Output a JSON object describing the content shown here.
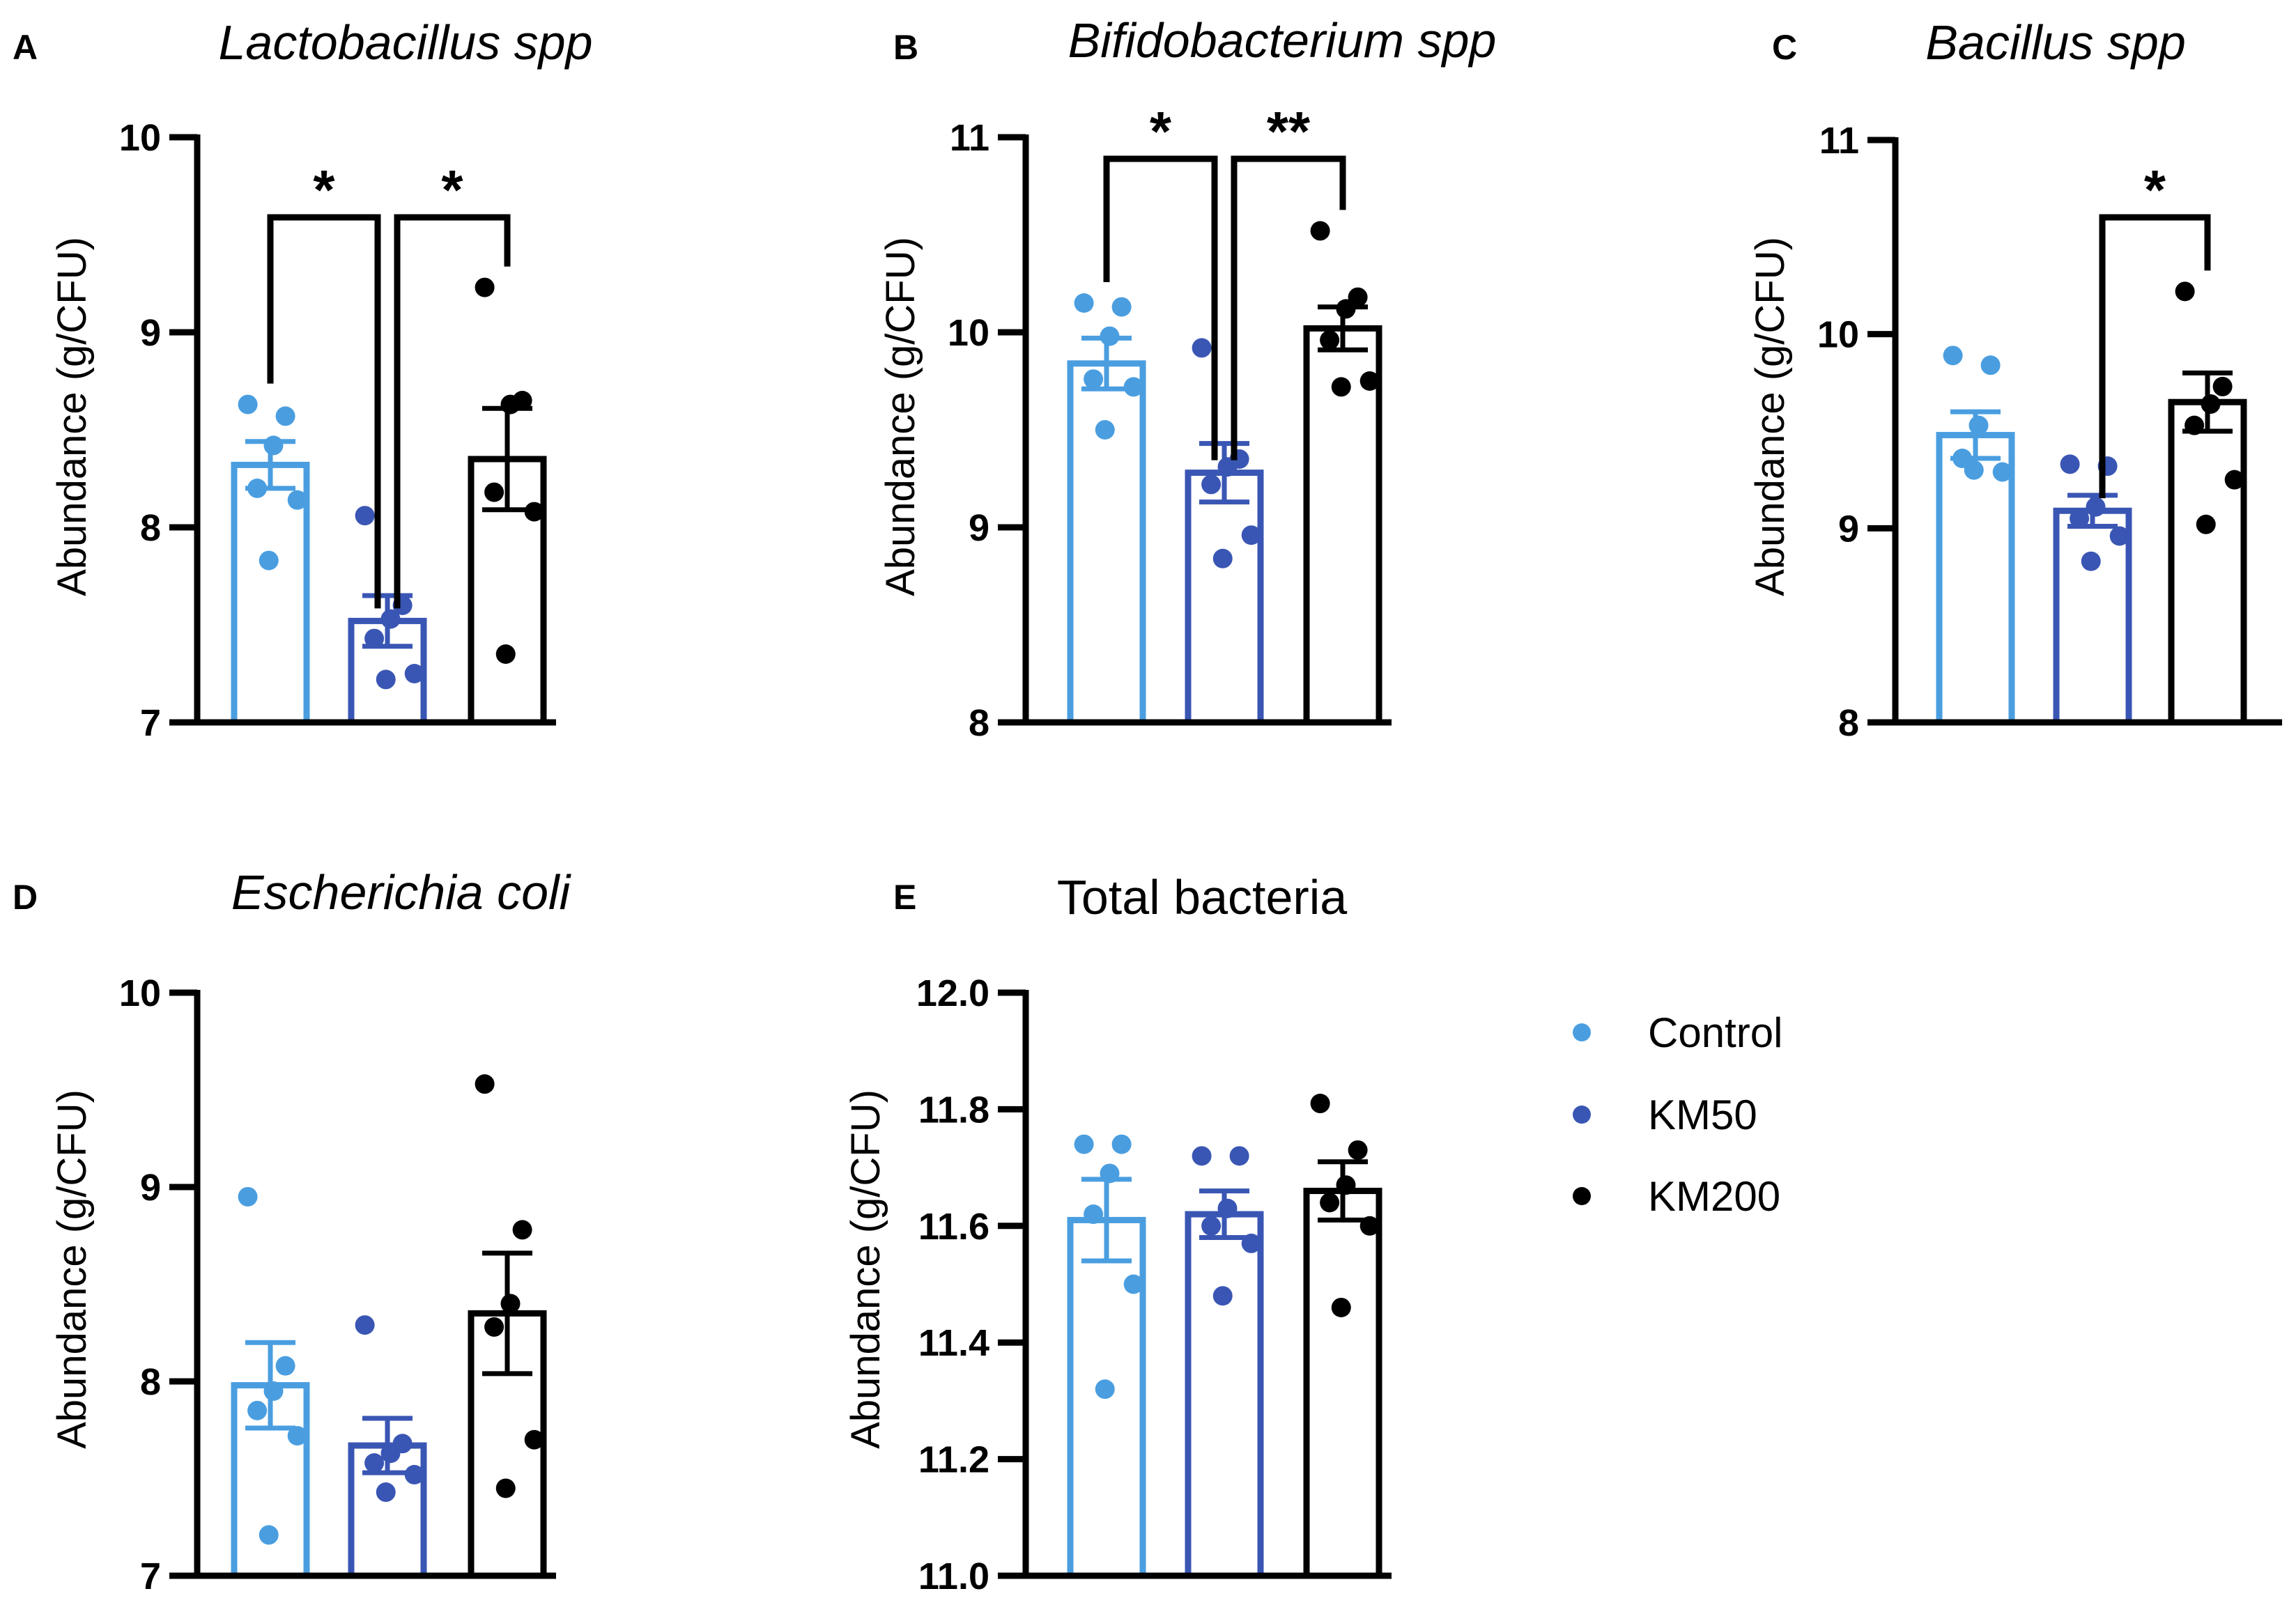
{
  "figure": {
    "legend": [
      {
        "label": "Control",
        "color": "#4a9ee0"
      },
      {
        "label": "KM50",
        "color": "#3a56b4"
      },
      {
        "label": "KM200",
        "color": "#000000"
      }
    ]
  },
  "chart_data": [
    {
      "panel": "A",
      "type": "bar",
      "title": "Lactobacillus spp",
      "title_italic": true,
      "ylabel": "Abundance (g/CFU)",
      "ylim": [
        7,
        10
      ],
      "yticks": [
        7,
        8,
        9,
        10
      ],
      "ytick_labels": [
        "7",
        "8",
        "9",
        "10"
      ],
      "categories": [
        "Control",
        "KM50",
        "KM200"
      ],
      "means": [
        8.32,
        7.52,
        8.35
      ],
      "sem": [
        0.12,
        0.13,
        0.26
      ],
      "points": [
        [
          8.63,
          8.57,
          8.42,
          8.2,
          8.14,
          7.83
        ],
        [
          8.06,
          7.6,
          7.53,
          7.43,
          7.25,
          7.22
        ],
        [
          9.23,
          8.65,
          8.63,
          8.18,
          8.08,
          7.35
        ]
      ],
      "significance": [
        {
          "from": 0,
          "to": 1,
          "label": "*"
        },
        {
          "from": 1,
          "to": 2,
          "label": "*"
        }
      ]
    },
    {
      "panel": "B",
      "type": "bar",
      "title": "Bifidobacterium spp",
      "title_italic": true,
      "ylabel": "Abundance (g/CFU)",
      "ylim": [
        8,
        11
      ],
      "yticks": [
        8,
        9,
        10,
        11
      ],
      "ytick_labels": [
        "8",
        "9",
        "10",
        "11"
      ],
      "categories": [
        "Control",
        "KM50",
        "KM200"
      ],
      "means": [
        9.84,
        9.28,
        10.02
      ],
      "sem": [
        0.13,
        0.15,
        0.11
      ],
      "points": [
        [
          10.15,
          10.13,
          9.98,
          9.76,
          9.72,
          9.5
        ],
        [
          9.92,
          9.35,
          9.31,
          9.22,
          8.96,
          8.84
        ],
        [
          10.52,
          10.18,
          10.12,
          9.96,
          9.75,
          9.72
        ]
      ],
      "significance": [
        {
          "from": 0,
          "to": 1,
          "label": "*"
        },
        {
          "from": 1,
          "to": 2,
          "label": "**"
        }
      ]
    },
    {
      "panel": "C",
      "type": "bar",
      "title": "Bacillus spp",
      "title_italic": true,
      "ylabel": "Abundance (g/CFU)",
      "ylim": [
        8,
        11
      ],
      "yticks": [
        8,
        9,
        10,
        11
      ],
      "ytick_labels": [
        "8",
        "9",
        "10",
        "11"
      ],
      "categories": [
        "Control",
        "KM50",
        "KM200"
      ],
      "means": [
        9.48,
        9.09,
        9.65
      ],
      "sem": [
        0.12,
        0.08,
        0.15
      ],
      "points": [
        [
          9.89,
          9.84,
          9.53,
          9.36,
          9.29,
          9.3
        ],
        [
          9.33,
          9.32,
          9.11,
          9.05,
          8.96,
          8.83
        ],
        [
          10.22,
          9.73,
          9.64,
          9.53,
          9.25,
          9.02
        ]
      ],
      "significance": [
        {
          "from": 1,
          "to": 2,
          "label": "*"
        }
      ]
    },
    {
      "panel": "D",
      "type": "bar",
      "title": "Escherichia coli",
      "title_italic": true,
      "ylabel": "Abundance (g/CFU)",
      "ylim": [
        7,
        10
      ],
      "yticks": [
        7,
        8,
        9,
        10
      ],
      "ytick_labels": [
        "7",
        "8",
        "9",
        "10"
      ],
      "categories": [
        "Control",
        "KM50",
        "KM200"
      ],
      "means": [
        7.98,
        7.67,
        8.35
      ],
      "sem": [
        0.22,
        0.14,
        0.31
      ],
      "points": [
        [
          8.95,
          8.08,
          7.95,
          7.85,
          7.72,
          7.21
        ],
        [
          8.29,
          7.68,
          7.63,
          7.58,
          7.52,
          7.43
        ],
        [
          9.53,
          8.78,
          8.4,
          8.28,
          7.7,
          7.45
        ]
      ],
      "significance": []
    },
    {
      "panel": "E",
      "type": "bar",
      "title": "Total bacteria",
      "title_italic": false,
      "ylabel": "Abundance (g/CFU)",
      "ylim": [
        11.0,
        12.0
      ],
      "yticks": [
        11.0,
        11.2,
        11.4,
        11.6,
        11.8,
        12.0
      ],
      "ytick_labels": [
        "11.0",
        "11.2",
        "11.4",
        "11.6",
        "11.8",
        "12.0"
      ],
      "categories": [
        "Control",
        "KM50",
        "KM200"
      ],
      "means": [
        11.61,
        11.62,
        11.66
      ],
      "sem": [
        0.07,
        0.04,
        0.05
      ],
      "points": [
        [
          11.74,
          11.74,
          11.69,
          11.62,
          11.5,
          11.32
        ],
        [
          11.72,
          11.72,
          11.63,
          11.6,
          11.57,
          11.48
        ],
        [
          11.81,
          11.73,
          11.67,
          11.64,
          11.6,
          11.46
        ]
      ],
      "significance": []
    }
  ]
}
